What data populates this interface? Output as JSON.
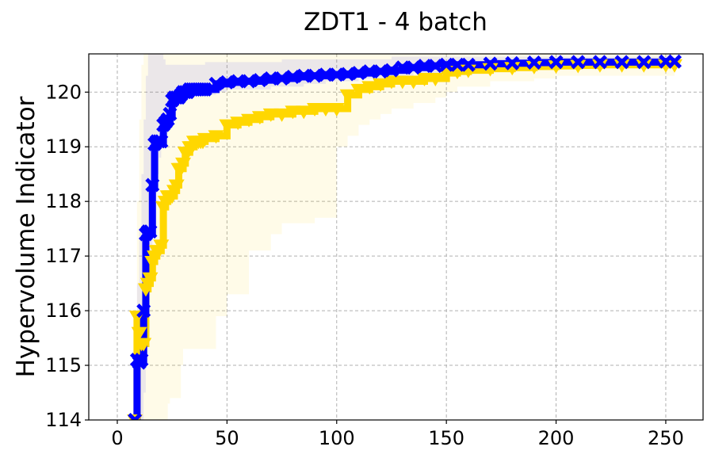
{
  "chart_data": {
    "type": "line",
    "title": "ZDT1 - 4 batch",
    "xlabel": "",
    "ylabel": "Hypervolume Indicator",
    "xlim": [
      -13,
      267
    ],
    "ylim": [
      114,
      120.7
    ],
    "xticks": [
      0,
      50,
      100,
      150,
      200,
      250
    ],
    "yticks": [
      114,
      115,
      116,
      117,
      118,
      119,
      120
    ],
    "grid": true,
    "series": [
      {
        "color": "#FFD700",
        "marker": "triangle-down",
        "x": [
          8,
          9,
          10,
          11,
          12,
          13,
          14,
          15,
          16,
          17,
          18,
          19,
          20,
          21,
          22,
          23,
          24,
          25,
          26,
          27,
          28,
          29,
          30,
          31,
          32,
          33,
          34,
          35,
          36,
          37,
          38,
          39,
          40,
          45,
          50,
          55,
          60,
          65,
          70,
          75,
          80,
          85,
          90,
          95,
          100,
          105,
          110,
          115,
          120,
          125,
          130,
          135,
          140,
          145,
          150,
          155,
          160,
          170,
          180,
          190,
          200,
          210,
          220,
          230,
          240,
          250,
          254
        ],
        "values": [
          114,
          115.9,
          115.6,
          115.4,
          115.4,
          116.4,
          116.5,
          116.6,
          116.9,
          117.0,
          117.1,
          117.1,
          117.2,
          117.9,
          118.0,
          118.1,
          118.1,
          118.1,
          118.2,
          118.3,
          118.6,
          118.6,
          118.7,
          118.9,
          118.9,
          119.0,
          119.0,
          119.1,
          119.1,
          119.1,
          119.1,
          119.1,
          119.15,
          119.2,
          119.4,
          119.45,
          119.5,
          119.55,
          119.6,
          119.6,
          119.65,
          119.65,
          119.7,
          119.7,
          119.7,
          119.95,
          120.05,
          120.1,
          120.15,
          120.2,
          120.2,
          120.2,
          120.25,
          120.25,
          120.35,
          120.38,
          120.4,
          120.43,
          120.45,
          120.47,
          120.48,
          120.49,
          120.5,
          120.5,
          120.5,
          120.5,
          120.5
        ],
        "band_upper": [
          116,
          118,
          119.5,
          120.5,
          120.7,
          120.7,
          120.7,
          120.7,
          120.7,
          120.7,
          120.7,
          120.7,
          120.7,
          120.7,
          120.7,
          120.7,
          120.7,
          120.7,
          120.7,
          120.7,
          120.7,
          120.7,
          120.7,
          120.7,
          120.7,
          120.7,
          120.7,
          120.7,
          120.7,
          120.7,
          120.7,
          120.7,
          120.7,
          120.7,
          120.7,
          120.7,
          120.7,
          120.7,
          120.7,
          120.7,
          120.7,
          120.7,
          120.7,
          120.7,
          120.7,
          120.7,
          120.7,
          120.7,
          120.7,
          120.7,
          120.7,
          120.7,
          120.7,
          120.7,
          120.7,
          120.7,
          120.7,
          120.7,
          120.7,
          120.7,
          120.7,
          120.7,
          120.7,
          120.7,
          120.7,
          120.7,
          120.7
        ],
        "band_lower": [
          114,
          114,
          114,
          114,
          114,
          114,
          114,
          114,
          114,
          114,
          114,
          114,
          114,
          114,
          114,
          114.3,
          114.4,
          114.4,
          114.4,
          114.4,
          114.4,
          115.0,
          115.3,
          115.3,
          115.3,
          115.3,
          115.3,
          115.3,
          115.3,
          115.3,
          115.3,
          115.3,
          115.3,
          115.9,
          116.3,
          116.3,
          117.1,
          117.1,
          117.4,
          117.6,
          117.6,
          117.6,
          117.7,
          117.7,
          119.0,
          119.2,
          119.4,
          119.5,
          119.6,
          119.7,
          119.7,
          119.8,
          119.8,
          119.9,
          120.0,
          120.1,
          120.1,
          120.2,
          120.2,
          120.25,
          120.3,
          120.3,
          120.3,
          120.3,
          120.3,
          120.3,
          120.3
        ]
      },
      {
        "color": "#0000FF",
        "marker": "X",
        "x": [
          8,
          9,
          10,
          11,
          12,
          13,
          14,
          15,
          16,
          17,
          18,
          19,
          20,
          21,
          22,
          23,
          24,
          25,
          26,
          27,
          28,
          29,
          30,
          31,
          32,
          33,
          34,
          35,
          36,
          37,
          38,
          39,
          40,
          45,
          50,
          55,
          60,
          65,
          70,
          75,
          80,
          85,
          90,
          95,
          100,
          105,
          110,
          115,
          120,
          125,
          130,
          135,
          140,
          145,
          150,
          155,
          160,
          170,
          180,
          190,
          200,
          210,
          220,
          230,
          240,
          250,
          254
        ],
        "values": [
          114,
          115.1,
          115.05,
          115.1,
          116.0,
          117.4,
          117.45,
          117.45,
          118.3,
          119.05,
          119.1,
          119.1,
          119.1,
          119.4,
          119.45,
          119.5,
          119.6,
          119.85,
          119.9,
          119.9,
          119.9,
          119.95,
          120.0,
          120.0,
          120.0,
          120.05,
          120.05,
          120.05,
          120.05,
          120.05,
          120.05,
          120.05,
          120.05,
          120.15,
          120.18,
          120.2,
          120.2,
          120.22,
          120.25,
          120.25,
          120.28,
          120.3,
          120.3,
          120.32,
          120.32,
          120.33,
          120.35,
          120.38,
          120.38,
          120.4,
          120.45,
          120.45,
          120.48,
          120.48,
          120.5,
          120.5,
          120.5,
          120.52,
          120.53,
          120.54,
          120.55,
          120.55,
          120.55,
          120.55,
          120.55,
          120.56,
          120.56
        ],
        "band_upper": [
          115.7,
          116.5,
          117.5,
          118.5,
          119.5,
          120.3,
          120.7,
          120.7,
          120.7,
          120.7,
          120.7,
          120.7,
          120.7,
          120.6,
          120.5,
          120.5,
          120.5,
          120.5,
          120.5,
          120.5,
          120.5,
          120.5,
          120.5,
          120.5,
          120.5,
          120.5,
          120.5,
          120.5,
          120.5,
          120.5,
          120.5,
          120.5,
          120.55,
          120.55,
          120.55,
          120.55,
          120.55,
          120.55,
          120.55,
          120.6,
          120.6,
          120.6,
          120.6,
          120.6,
          120.6,
          120.6,
          120.6,
          120.6,
          120.6,
          120.65,
          120.65,
          120.65,
          120.65,
          120.65,
          120.65,
          120.65,
          120.65,
          120.65,
          120.65,
          120.65,
          120.65,
          120.65,
          120.65,
          120.65,
          120.65,
          120.65,
          120.65
        ],
        "band_lower": [
          114,
          114,
          114,
          114,
          114.5,
          115.5,
          116.5,
          117,
          118,
          118.5,
          118.5,
          118.8,
          119.0,
          119.2,
          119.3,
          119.5,
          119.6,
          119.7,
          119.8,
          119.8,
          119.8,
          119.9,
          119.9,
          119.9,
          119.9,
          119.95,
          119.95,
          119.95,
          119.95,
          119.95,
          119.95,
          119.95,
          119.95,
          120.0,
          120.05,
          120.05,
          120.05,
          120.05,
          120.1,
          120.1,
          120.1,
          120.15,
          120.15,
          120.2,
          120.2,
          120.2,
          120.25,
          120.25,
          120.25,
          120.3,
          120.3,
          120.35,
          120.35,
          120.35,
          120.4,
          120.4,
          120.4,
          120.42,
          120.44,
          120.45,
          120.45,
          120.45,
          120.45,
          120.45,
          120.45,
          120.46,
          120.46
        ]
      }
    ]
  }
}
